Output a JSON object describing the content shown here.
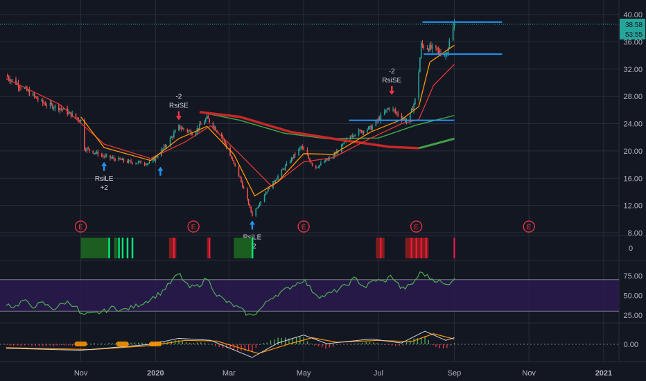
{
  "chart_data": [
    {
      "type": "line",
      "pane": "price",
      "y_ticks": [
        "40.00",
        "36.00",
        "32.00",
        "28.00",
        "24.00",
        "20.00",
        "16.00",
        "12.00",
        "8.00"
      ],
      "ylim": [
        8,
        40
      ],
      "last_price_label": "38.58",
      "countdown_label": "53:55",
      "price_series": [
        {
          "d": "2019-09-01",
          "v": 31
        },
        {
          "d": "2019-09-15",
          "v": 29.2
        },
        {
          "d": "2019-10-01",
          "v": 27
        },
        {
          "d": "2019-10-15",
          "v": 26.3
        },
        {
          "d": "2019-11-01",
          "v": 24.5
        },
        {
          "d": "2019-11-03",
          "v": 20.5
        },
        {
          "d": "2019-11-20",
          "v": 19.2
        },
        {
          "d": "2019-12-10",
          "v": 18.4
        },
        {
          "d": "2019-12-28",
          "v": 18.2
        },
        {
          "d": "2020-01-08",
          "v": 20.5
        },
        {
          "d": "2020-01-20",
          "v": 23.5
        },
        {
          "d": "2020-02-01",
          "v": 22.6
        },
        {
          "d": "2020-02-12",
          "v": 24.8
        },
        {
          "d": "2020-02-24",
          "v": 22.2
        },
        {
          "d": "2020-03-10",
          "v": 16
        },
        {
          "d": "2020-03-20",
          "v": 10.6
        },
        {
          "d": "2020-04-01",
          "v": 14.2
        },
        {
          "d": "2020-04-15",
          "v": 17.5
        },
        {
          "d": "2020-04-29",
          "v": 20.6
        },
        {
          "d": "2020-05-10",
          "v": 17.5
        },
        {
          "d": "2020-05-25",
          "v": 19.2
        },
        {
          "d": "2020-06-10",
          "v": 22.5
        },
        {
          "d": "2020-06-25",
          "v": 23.4
        },
        {
          "d": "2020-07-10",
          "v": 26.4
        },
        {
          "d": "2020-07-25",
          "v": 24.2
        },
        {
          "d": "2020-08-01",
          "v": 28
        },
        {
          "d": "2020-08-05",
          "v": 35.5
        },
        {
          "d": "2020-08-15",
          "v": 34.9
        },
        {
          "d": "2020-08-25",
          "v": 34.1
        },
        {
          "d": "2020-09-01",
          "v": 38.58
        }
      ],
      "ema_fast": [
        {
          "d": "2019-11-01",
          "v": 25.0
        },
        {
          "d": "2019-11-20",
          "v": 20.5
        },
        {
          "d": "2019-12-28",
          "v": 18.6
        },
        {
          "d": "2020-01-20",
          "v": 21.8
        },
        {
          "d": "2020-02-12",
          "v": 23.6
        },
        {
          "d": "2020-03-05",
          "v": 19.5
        },
        {
          "d": "2020-03-22",
          "v": 13.4
        },
        {
          "d": "2020-04-10",
          "v": 15.5
        },
        {
          "d": "2020-05-01",
          "v": 19.6
        },
        {
          "d": "2020-05-25",
          "v": 19.5
        },
        {
          "d": "2020-06-25",
          "v": 22.8
        },
        {
          "d": "2020-07-20",
          "v": 24.6
        },
        {
          "d": "2020-08-03",
          "v": 26.5
        },
        {
          "d": "2020-08-12",
          "v": 33
        },
        {
          "d": "2020-09-01",
          "v": 35.5
        }
      ],
      "ema_slow": [
        {
          "d": "2019-09-01",
          "v": 30.6
        },
        {
          "d": "2019-10-15",
          "v": 26.8
        },
        {
          "d": "2019-11-20",
          "v": 21
        },
        {
          "d": "2019-12-28",
          "v": 18.9
        },
        {
          "d": "2020-01-25",
          "v": 21.3
        },
        {
          "d": "2020-02-15",
          "v": 23.7
        },
        {
          "d": "2020-03-10",
          "v": 19.5
        },
        {
          "d": "2020-04-05",
          "v": 14.8
        },
        {
          "d": "2020-05-01",
          "v": 18.4
        },
        {
          "d": "2020-05-25",
          "v": 19
        },
        {
          "d": "2020-06-25",
          "v": 21.9
        },
        {
          "d": "2020-07-20",
          "v": 24
        },
        {
          "d": "2020-08-03",
          "v": 24.6
        },
        {
          "d": "2020-08-15",
          "v": 29.6
        },
        {
          "d": "2020-09-01",
          "v": 32.7
        }
      ],
      "sma_green": [
        {
          "d": "2020-02-06",
          "v": 25.7
        },
        {
          "d": "2020-03-10",
          "v": 24.5
        },
        {
          "d": "2020-04-15",
          "v": 22.6
        },
        {
          "d": "2020-05-20",
          "v": 21.8
        },
        {
          "d": "2020-07-01",
          "v": 21.9
        },
        {
          "d": "2020-08-01",
          "v": 23.8
        },
        {
          "d": "2020-09-01",
          "v": 25.2
        }
      ],
      "sma_red": [
        {
          "d": "2020-02-06",
          "v": 25.7
        },
        {
          "d": "2020-03-10",
          "v": 25.0
        },
        {
          "d": "2020-04-20",
          "v": 22.8
        },
        {
          "d": "2020-06-01",
          "v": 21.6
        },
        {
          "d": "2020-07-10",
          "v": 20.6
        },
        {
          "d": "2020-08-03",
          "v": 20.4
        }
      ],
      "sma_green_tail": [
        {
          "d": "2020-08-03",
          "v": 20.4
        },
        {
          "d": "2020-09-01",
          "v": 21.8
        }
      ],
      "horizontal_lines": [
        {
          "d1": "2020-08-06",
          "d2": "2020-10-10",
          "v": 38.9
        },
        {
          "d1": "2020-08-07",
          "d2": "2020-10-10",
          "v": 34.2
        },
        {
          "d1": "2020-06-07",
          "d2": "2020-09-01",
          "v": 24.5
        }
      ],
      "signals": [
        {
          "d": "2019-11-20",
          "v": 19.2,
          "dir": "long",
          "label": "RsiLE",
          "qty": "+2"
        },
        {
          "d": "2020-01-05",
          "v": 18.5,
          "dir": "long",
          "label": "",
          "qty": ""
        },
        {
          "d": "2020-01-20",
          "v": 23.7,
          "dir": "short",
          "label": "RsiSE",
          "qty": "-2"
        },
        {
          "d": "2020-03-20",
          "v": 10.6,
          "dir": "long",
          "label": "RsiLE",
          "qty": "+2"
        },
        {
          "d": "2020-07-12",
          "v": 27.4,
          "dir": "short",
          "label": "RsiSE",
          "qty": "-2"
        }
      ],
      "earnings_marker": "E",
      "earnings_dates": [
        "2019-11-01",
        "2020-02-01",
        "2020-05-01",
        "2020-08-01",
        "2020-11-01"
      ]
    },
    {
      "type": "heatmap",
      "pane": "signal_strip",
      "y_tick": "0",
      "green_blocks": [
        {
          "from": "2019-11-01",
          "to": "2019-11-25"
        },
        {
          "from": "2019-11-28",
          "to": "2019-12-01"
        },
        {
          "from": "2020-03-05",
          "to": "2020-03-20"
        }
      ],
      "green_bars": [
        "2019-11-24",
        "2019-12-02",
        "2019-12-05",
        "2019-12-09",
        "2019-12-13",
        "2020-03-20"
      ],
      "red_blocks": [
        {
          "from": "2020-01-12",
          "to": "2020-01-18"
        },
        {
          "from": "2020-02-12",
          "to": "2020-02-15"
        },
        {
          "from": "2020-06-29",
          "to": "2020-07-06"
        },
        {
          "from": "2020-07-23",
          "to": "2020-08-11"
        }
      ],
      "red_bars": [
        "2020-01-16",
        "2020-02-14",
        "2020-07-03",
        "2020-07-28",
        "2020-08-01",
        "2020-08-05",
        "2020-08-09",
        "2020-09-01"
      ]
    },
    {
      "type": "line",
      "pane": "rsi",
      "y_ticks": [
        "75.00",
        "50.00",
        "25.00"
      ],
      "ylim": [
        10,
        90
      ],
      "upper_band": 70,
      "lower_band": 30,
      "values": [
        {
          "d": "2019-09-01",
          "v": 40
        },
        {
          "d": "2019-09-08",
          "v": 35
        },
        {
          "d": "2019-09-15",
          "v": 44
        },
        {
          "d": "2019-09-22",
          "v": 36
        },
        {
          "d": "2019-10-01",
          "v": 40
        },
        {
          "d": "2019-10-10",
          "v": 33
        },
        {
          "d": "2019-10-20",
          "v": 42
        },
        {
          "d": "2019-10-28",
          "v": 37
        },
        {
          "d": "2019-11-01",
          "v": 25
        },
        {
          "d": "2019-11-10",
          "v": 26
        },
        {
          "d": "2019-11-20",
          "v": 30
        },
        {
          "d": "2019-11-28",
          "v": 35
        },
        {
          "d": "2019-12-05",
          "v": 31
        },
        {
          "d": "2019-12-15",
          "v": 36
        },
        {
          "d": "2019-12-25",
          "v": 43
        },
        {
          "d": "2020-01-05",
          "v": 53
        },
        {
          "d": "2020-01-12",
          "v": 64
        },
        {
          "d": "2020-01-20",
          "v": 78
        },
        {
          "d": "2020-01-28",
          "v": 60
        },
        {
          "d": "2020-02-05",
          "v": 62
        },
        {
          "d": "2020-02-12",
          "v": 72
        },
        {
          "d": "2020-02-20",
          "v": 51
        },
        {
          "d": "2020-02-28",
          "v": 42
        },
        {
          "d": "2020-03-10",
          "v": 33
        },
        {
          "d": "2020-03-18",
          "v": 24
        },
        {
          "d": "2020-03-25",
          "v": 30
        },
        {
          "d": "2020-04-05",
          "v": 48
        },
        {
          "d": "2020-04-15",
          "v": 56
        },
        {
          "d": "2020-04-25",
          "v": 65
        },
        {
          "d": "2020-05-01",
          "v": 70
        },
        {
          "d": "2020-05-08",
          "v": 56
        },
        {
          "d": "2020-05-15",
          "v": 48
        },
        {
          "d": "2020-05-25",
          "v": 54
        },
        {
          "d": "2020-06-05",
          "v": 63
        },
        {
          "d": "2020-06-12",
          "v": 72
        },
        {
          "d": "2020-06-20",
          "v": 60
        },
        {
          "d": "2020-06-28",
          "v": 70
        },
        {
          "d": "2020-07-05",
          "v": 67
        },
        {
          "d": "2020-07-12",
          "v": 75
        },
        {
          "d": "2020-07-20",
          "v": 58
        },
        {
          "d": "2020-07-28",
          "v": 63
        },
        {
          "d": "2020-08-05",
          "v": 80
        },
        {
          "d": "2020-08-12",
          "v": 72
        },
        {
          "d": "2020-08-20",
          "v": 68
        },
        {
          "d": "2020-08-25",
          "v": 62
        },
        {
          "d": "2020-09-01",
          "v": 72
        }
      ]
    },
    {
      "type": "bar",
      "pane": "macd",
      "y_tick": "0.00",
      "ylim": [
        -2,
        2
      ],
      "histogram_sign_changes": [
        "2019-09-01",
        "2019-12-28",
        "2020-02-20",
        "2020-04-01",
        "2020-05-08",
        "2020-05-25",
        "2020-07-20",
        "2020-08-03"
      ],
      "macd_line": [
        {
          "d": "2019-09-01",
          "v": -0.6
        },
        {
          "d": "2019-11-01",
          "v": -0.9
        },
        {
          "d": "2019-11-20",
          "v": -0.6
        },
        {
          "d": "2019-12-28",
          "v": 0.0
        },
        {
          "d": "2020-01-20",
          "v": 0.9
        },
        {
          "d": "2020-02-15",
          "v": 0.6
        },
        {
          "d": "2020-03-20",
          "v": -2.0
        },
        {
          "d": "2020-04-10",
          "v": 0.2
        },
        {
          "d": "2020-05-01",
          "v": 1.4
        },
        {
          "d": "2020-05-20",
          "v": 0.1
        },
        {
          "d": "2020-06-25",
          "v": 0.8
        },
        {
          "d": "2020-07-20",
          "v": 0.2
        },
        {
          "d": "2020-08-08",
          "v": 2.0
        },
        {
          "d": "2020-08-25",
          "v": 0.6
        },
        {
          "d": "2020-09-01",
          "v": 1.0
        }
      ],
      "signal_line": [
        {
          "d": "2019-09-01",
          "v": -0.5
        },
        {
          "d": "2019-11-10",
          "v": -0.8
        },
        {
          "d": "2019-12-28",
          "v": -0.2
        },
        {
          "d": "2020-01-25",
          "v": 0.6
        },
        {
          "d": "2020-02-20",
          "v": 0.5
        },
        {
          "d": "2020-03-25",
          "v": -1.4
        },
        {
          "d": "2020-04-20",
          "v": 0.1
        },
        {
          "d": "2020-05-08",
          "v": 1.0
        },
        {
          "d": "2020-05-28",
          "v": 0.3
        },
        {
          "d": "2020-07-01",
          "v": 0.6
        },
        {
          "d": "2020-07-28",
          "v": 0.4
        },
        {
          "d": "2020-08-15",
          "v": 1.6
        },
        {
          "d": "2020-09-01",
          "v": 0.8
        }
      ],
      "annotation_dates": [
        "2019-11-01",
        "2019-12-05",
        "2020-01-01"
      ]
    }
  ],
  "x_axis": {
    "labels": [
      {
        "d": "2019-11-01",
        "text": "Nov",
        "bold": false
      },
      {
        "d": "2020-01-01",
        "text": "2020",
        "bold": true
      },
      {
        "d": "2020-03-01",
        "text": "Mar",
        "bold": false
      },
      {
        "d": "2020-05-01",
        "text": "May",
        "bold": false
      },
      {
        "d": "2020-07-01",
        "text": "Jul",
        "bold": false
      },
      {
        "d": "2020-09-01",
        "text": "Sep",
        "bold": false
      },
      {
        "d": "2020-11-01",
        "text": "Nov",
        "bold": false
      },
      {
        "d": "2021-01-01",
        "text": "2021",
        "bold": true
      }
    ]
  },
  "colors": {
    "background": "#131722",
    "grid": "#2a2e39",
    "candle_up": "#26a69a",
    "candle_down": "#ef5350",
    "ema_fast": "#ff9800",
    "ema_slow": "#e53935",
    "sma_green": "#43a047",
    "sma_red": "#c62828",
    "trendline": "#2196f3",
    "long_arrow": "#2196f3",
    "short_arrow": "#f23645",
    "rsi_line": "#4caf50",
    "rsi_band": "#2a1a4f",
    "rsi_band_border": "#787b86",
    "earnings": "#f23645",
    "price_badge": "#26a69a",
    "macd_line": "#d1d4dc",
    "signal_line": "#ff9800",
    "hist_up": "#4caf50",
    "hist_down": "#f23645",
    "strip_green_dark": "#1b5e20",
    "strip_green_bright": "#00e676",
    "strip_red_dark": "#7f1d1d",
    "strip_red_bright": "#ff1744"
  }
}
